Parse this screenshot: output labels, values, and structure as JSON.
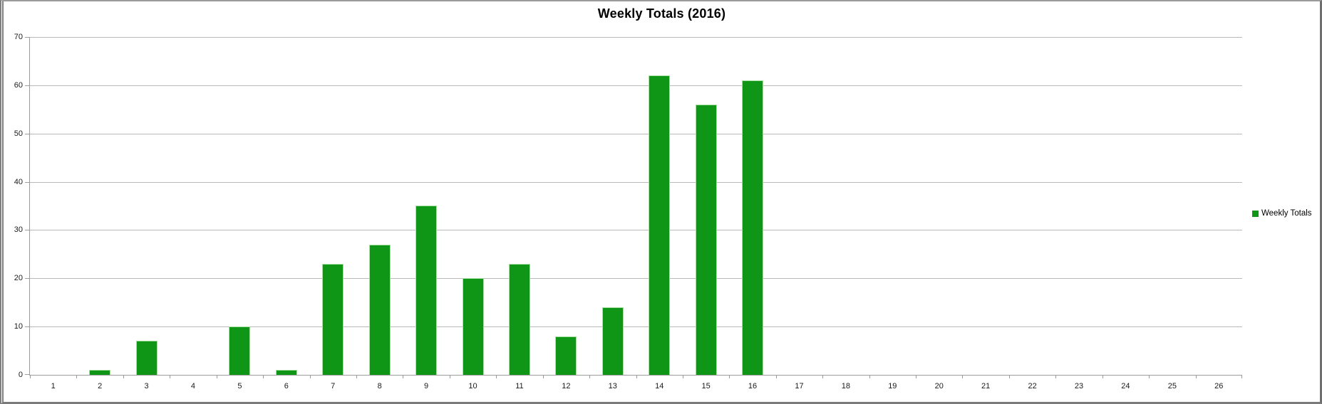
{
  "window": {
    "background": "#ffffff",
    "frame_color": "#808080"
  },
  "chart_data": {
    "type": "bar",
    "title": "Weekly Totals (2016)",
    "xlabel": "",
    "ylabel": "",
    "categories": [
      1,
      2,
      3,
      4,
      5,
      6,
      7,
      8,
      9,
      10,
      11,
      12,
      13,
      14,
      15,
      16,
      17,
      18,
      19,
      20,
      21,
      22,
      23,
      24,
      25,
      26
    ],
    "series": [
      {
        "name": "Weekly Totals",
        "values": [
          0,
          1,
          7,
          0,
          10,
          1,
          23,
          27,
          35,
          20,
          23,
          8,
          14,
          62,
          56,
          61,
          0,
          0,
          0,
          0,
          0,
          0,
          0,
          0,
          0,
          0
        ]
      }
    ],
    "ylim": [
      0,
      70
    ],
    "yticks": [
      0,
      10,
      20,
      30,
      40,
      50,
      60,
      70
    ],
    "grid": true,
    "legend_position": "right",
    "colors": {
      "bar": "#109616",
      "bar_highlight": "#a8dfa2",
      "gridline": "#b9b9b9",
      "axis": "#9c9c9c",
      "title": "#000000",
      "tick_label": "#1a1a1a"
    }
  }
}
